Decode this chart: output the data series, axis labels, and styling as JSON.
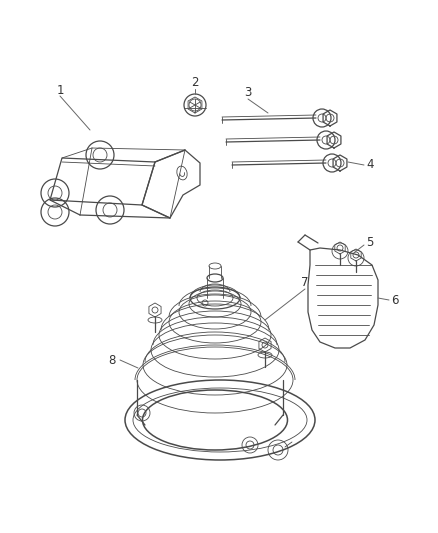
{
  "background_color": "#ffffff",
  "line_color": "#4a4a4a",
  "label_color": "#333333",
  "fig_width": 4.38,
  "fig_height": 5.33,
  "dpi": 100,
  "label_fontsize": 8.5
}
